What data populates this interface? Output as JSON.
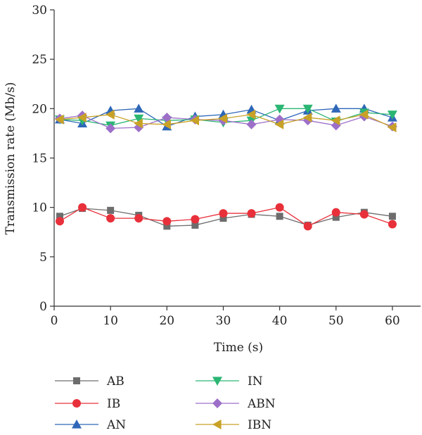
{
  "chart_data": {
    "type": "line",
    "title": "",
    "xlabel": "Time (s)",
    "ylabel": "Transmission rate (Mb/s)",
    "xlim": [
      0,
      65
    ],
    "ylim": [
      0,
      30
    ],
    "xticks": [
      0,
      10,
      20,
      30,
      40,
      50,
      60
    ],
    "yticks": [
      0,
      5,
      10,
      15,
      20,
      25,
      30
    ],
    "grid": false,
    "legend_position": "bottom",
    "x": [
      1,
      5,
      10,
      15,
      20,
      25,
      30,
      35,
      40,
      45,
      50,
      55,
      60
    ],
    "series": [
      {
        "name": "AB",
        "color": "#6d6d6d",
        "marker": "square",
        "values": [
          9.1,
          9.9,
          9.7,
          9.2,
          8.1,
          8.2,
          8.9,
          9.3,
          9.1,
          8.2,
          9.0,
          9.5,
          9.1
        ]
      },
      {
        "name": "IB",
        "color": "#e8303a",
        "marker": "circle",
        "values": [
          8.6,
          10.0,
          8.9,
          8.9,
          8.6,
          8.8,
          9.4,
          9.4,
          10.0,
          8.1,
          9.5,
          9.3,
          8.3
        ]
      },
      {
        "name": "AN",
        "color": "#2e67b8",
        "marker": "triangle-up",
        "values": [
          18.9,
          18.5,
          19.8,
          20.0,
          18.2,
          19.2,
          19.4,
          19.9,
          18.8,
          19.8,
          20.0,
          20.0,
          19.1
        ]
      },
      {
        "name": "IN",
        "color": "#2bb673",
        "marker": "triangle-down",
        "values": [
          18.9,
          18.8,
          18.3,
          19.0,
          18.8,
          18.9,
          18.6,
          18.8,
          20.0,
          20.0,
          18.7,
          19.6,
          19.4
        ]
      },
      {
        "name": "ABN",
        "color": "#9d6fc9",
        "marker": "diamond",
        "values": [
          19.0,
          19.3,
          18.0,
          18.1,
          19.1,
          18.9,
          18.8,
          18.4,
          18.9,
          18.8,
          18.3,
          19.2,
          18.2
        ]
      },
      {
        "name": "IBN",
        "color": "#c8a227",
        "marker": "triangle-left",
        "values": [
          18.9,
          19.1,
          19.4,
          18.5,
          18.4,
          18.8,
          19.0,
          19.4,
          18.4,
          19.1,
          18.8,
          19.4,
          18.1
        ]
      }
    ]
  }
}
